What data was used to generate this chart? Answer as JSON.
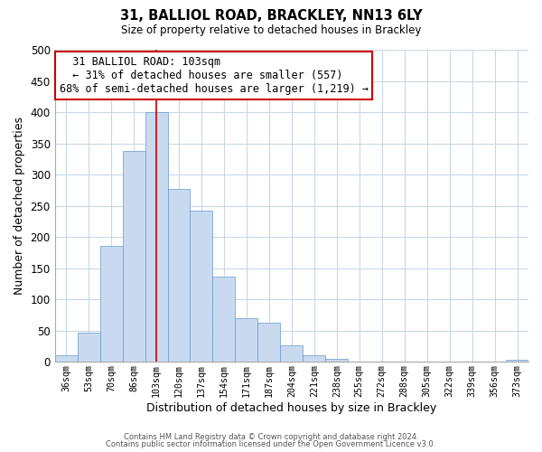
{
  "title": "31, BALLIOL ROAD, BRACKLEY, NN13 6LY",
  "subtitle": "Size of property relative to detached houses in Brackley",
  "xlabel": "Distribution of detached houses by size in Brackley",
  "ylabel": "Number of detached properties",
  "bar_labels": [
    "36sqm",
    "53sqm",
    "70sqm",
    "86sqm",
    "103sqm",
    "120sqm",
    "137sqm",
    "154sqm",
    "171sqm",
    "187sqm",
    "204sqm",
    "221sqm",
    "238sqm",
    "255sqm",
    "272sqm",
    "288sqm",
    "305sqm",
    "322sqm",
    "339sqm",
    "356sqm",
    "373sqm"
  ],
  "bar_values": [
    10,
    47,
    185,
    338,
    400,
    277,
    242,
    137,
    70,
    62,
    26,
    10,
    5,
    0,
    0,
    0,
    0,
    0,
    0,
    0,
    3
  ],
  "bar_color": "#c9daf0",
  "bar_edge_color": "#6699cc",
  "vline_x_index": 4,
  "vline_color": "#cc0000",
  "annotation_title": "31 BALLIOL ROAD: 103sqm",
  "annotation_line1": "← 31% of detached houses are smaller (557)",
  "annotation_line2": "68% of semi-detached houses are larger (1,219) →",
  "annotation_box_color": "#ffffff",
  "annotation_box_edge": "#cc0000",
  "ylim": [
    0,
    500
  ],
  "yticks": [
    0,
    50,
    100,
    150,
    200,
    250,
    300,
    350,
    400,
    450,
    500
  ],
  "footer1": "Contains HM Land Registry data © Crown copyright and database right 2024.",
  "footer2": "Contains public sector information licensed under the Open Government Licence v3.0.",
  "background_color": "#ffffff",
  "grid_color": "#c8d8e8"
}
